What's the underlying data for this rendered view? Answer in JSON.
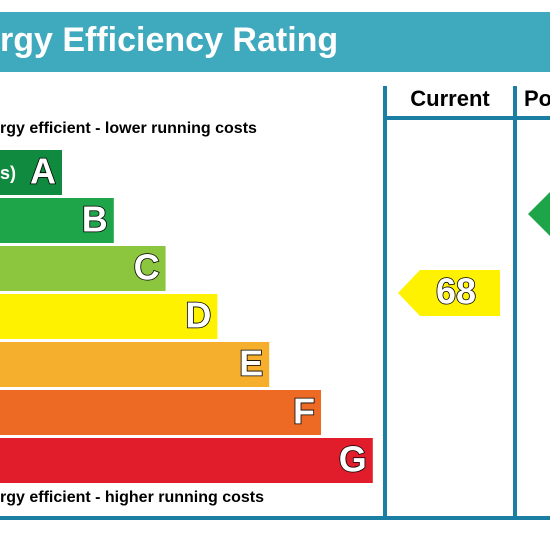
{
  "header": {
    "title": "rgy Efficiency Rating"
  },
  "columns": [
    "Current",
    "Po"
  ],
  "top_note": "rgy efficient - lower running costs",
  "bottom_note": "rgy efficient - higher running costs",
  "bands": [
    {
      "prefix": "s)",
      "letter": "A",
      "color": "#0f8a3f"
    },
    {
      "letter": "B",
      "color": "#1ea54a"
    },
    {
      "letter": "C",
      "color": "#8cc63f"
    },
    {
      "letter": "D",
      "color": "#fff200"
    },
    {
      "letter": "E",
      "color": "#f6ae2d"
    },
    {
      "letter": "F",
      "color": "#ed6a24"
    },
    {
      "letter": "G",
      "color": "#e21d2b"
    }
  ],
  "current": {
    "rating": "68",
    "color": "#fff200"
  },
  "potential": {
    "color": "#1ea54a"
  }
}
